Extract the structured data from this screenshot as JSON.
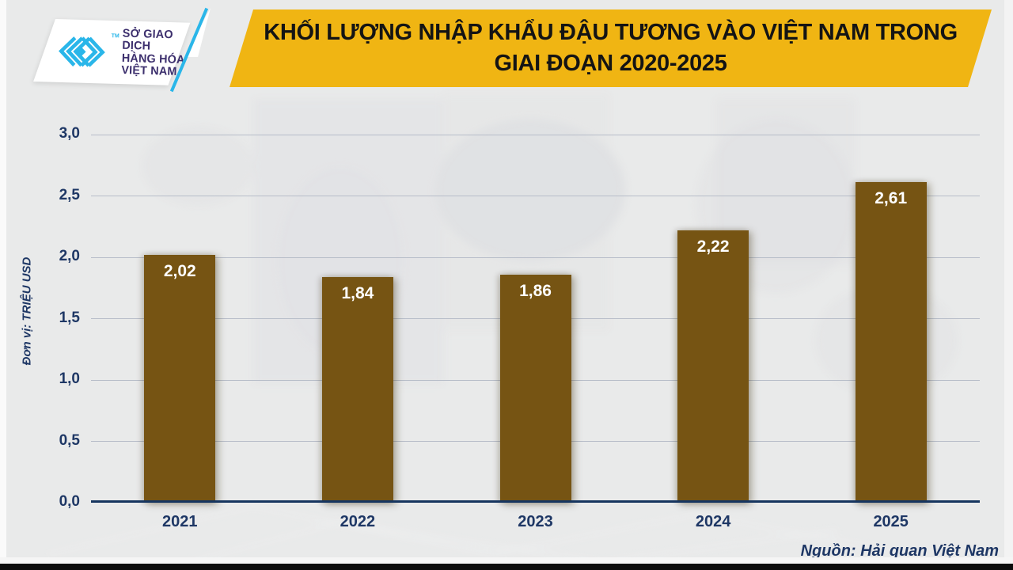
{
  "logo": {
    "line1": "SỞ GIAO DỊCH",
    "line2": "HÀNG HÓA",
    "line3": "VIỆT NAM",
    "trademark": "TM",
    "icon": "mxv-chevron-weave-icon",
    "icon_color": "#2ab6e9",
    "text_color": "#3c2f6d"
  },
  "header": {
    "title_line1": "KHỐI LƯỢNG NHẬP KHẨU ĐẬU TƯƠNG VÀO VIỆT NAM TRONG",
    "title_line2": "GIAI ĐOẠN 2020-2025",
    "banner_color": "#f0b513",
    "text_color": "#141414"
  },
  "chart_data": {
    "type": "bar",
    "title": "KHỐI LƯỢNG NHẬP KHẨU ĐẬU TƯƠNG VÀO VIỆT NAM TRONG GIAI ĐOẠN 2020-2025",
    "categories": [
      "2021",
      "2022",
      "2023",
      "2024",
      "2025"
    ],
    "values": [
      2.02,
      1.84,
      1.86,
      2.22,
      2.61
    ],
    "value_labels": [
      "2,02",
      "1,84",
      "1,86",
      "2,22",
      "2,61"
    ],
    "xlabel": "",
    "ylabel": "Đơn vị: TRIỆU USD",
    "ylim": [
      0,
      3
    ],
    "ytick_values": [
      0,
      0.5,
      1,
      1.5,
      2,
      2.5,
      3
    ],
    "ytick_labels": [
      "0,0",
      "0,5",
      "1,0",
      "1,5",
      "2,0",
      "2,5",
      "3,0"
    ],
    "grid": true,
    "legend": false,
    "bar_color": "#765413",
    "value_label_color": "#ffffff",
    "axis_color": "#16355f",
    "tick_color": "#1e3765",
    "source": "Nguồn: Hải quan Việt Nam"
  },
  "colors": {
    "background": "#e9eaea",
    "gridline": "#b7bdc9",
    "bottom_border": "#0b0b0b"
  }
}
